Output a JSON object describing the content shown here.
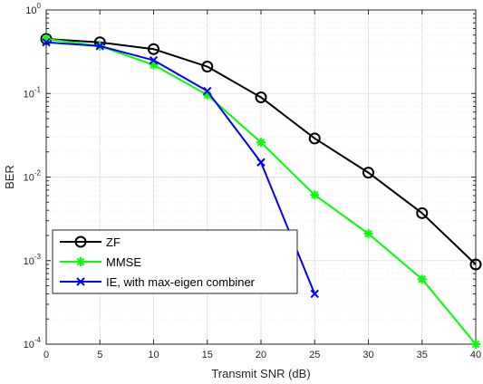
{
  "chart_data": {
    "type": "line",
    "xlabel": "Transmit SNR (dB)",
    "ylabel": "BER",
    "xlim": [
      0,
      40
    ],
    "ylim": [
      0.0001,
      1
    ],
    "yscale": "log",
    "grid": true,
    "legend_position": "bottom-left",
    "xticks": [
      0,
      5,
      10,
      15,
      20,
      25,
      30,
      35,
      40
    ],
    "xtick_labels": [
      "0",
      "5",
      "10",
      "15",
      "20",
      "25",
      "30",
      "35",
      "40"
    ],
    "yticks": [
      {
        "value": 0.0001,
        "base": "10",
        "exp": "-4"
      },
      {
        "value": 0.001,
        "base": "10",
        "exp": "-3"
      },
      {
        "value": 0.01,
        "base": "10",
        "exp": "-2"
      },
      {
        "value": 0.1,
        "base": "10",
        "exp": "-1"
      },
      {
        "value": 1,
        "base": "10",
        "exp": "0"
      }
    ],
    "series": [
      {
        "name": "ZF",
        "color": "#000000",
        "marker": "circle",
        "x": [
          0,
          5,
          10,
          15,
          20,
          25,
          30,
          35,
          40
        ],
        "y": [
          0.45,
          0.41,
          0.34,
          0.21,
          0.09,
          0.029,
          0.0113,
          0.0037,
          0.0009
        ]
      },
      {
        "name": "MMSE",
        "color": "#00ff00",
        "marker": "asterisk",
        "x": [
          0,
          5,
          10,
          15,
          20,
          25,
          30,
          35,
          40
        ],
        "y": [
          0.45,
          0.37,
          0.22,
          0.096,
          0.026,
          0.0061,
          0.0021,
          0.0006,
          0.0001
        ]
      },
      {
        "name": "IE, with max-eigen combiner",
        "color": "#0000ff",
        "marker": "x",
        "x": [
          0,
          5,
          10,
          15,
          20,
          25
        ],
        "y": [
          0.41,
          0.37,
          0.25,
          0.107,
          0.015,
          0.0004
        ]
      }
    ]
  }
}
